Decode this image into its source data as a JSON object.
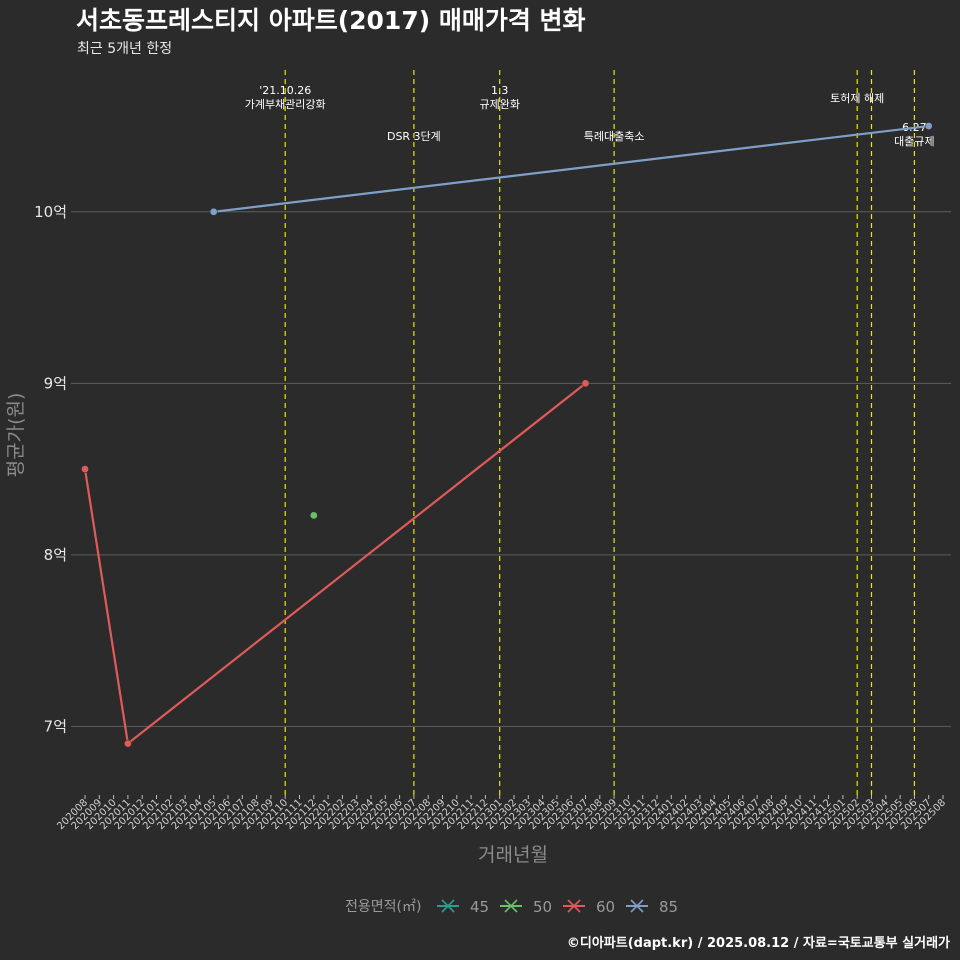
{
  "chart_data": {
    "type": "line",
    "title": "서초동프레스티지 아파트(2017) 매매가격 변화",
    "subtitle": "최근 5개년 한정",
    "xlabel": "거래년월",
    "ylabel": "평균가(원)",
    "caption": "©디아파트(dapt.kr) / 2025.08.12 / 자료=국토교통부 실거래가",
    "x_categories": [
      "202008",
      "202009",
      "202010",
      "202011",
      "202012",
      "202101",
      "202102",
      "202103",
      "202104",
      "202105",
      "202106",
      "202107",
      "202108",
      "202109",
      "202110",
      "202111",
      "202112",
      "202201",
      "202202",
      "202203",
      "202204",
      "202205",
      "202206",
      "202207",
      "202208",
      "202209",
      "202210",
      "202211",
      "202212",
      "202301",
      "202302",
      "202303",
      "202304",
      "202305",
      "202306",
      "202307",
      "202308",
      "202309",
      "202310",
      "202311",
      "202312",
      "202401",
      "202402",
      "202403",
      "202404",
      "202405",
      "202406",
      "202407",
      "202408",
      "202409",
      "202410",
      "202411",
      "202412",
      "202501",
      "202502",
      "202503",
      "202504",
      "202505",
      "202506",
      "202507",
      "202508"
    ],
    "yticks": [
      {
        "value": 70000,
        "label": "7억"
      },
      {
        "value": 80000,
        "label": "8억"
      },
      {
        "value": 90000,
        "label": "9억"
      },
      {
        "value": 100000,
        "label": "10억"
      }
    ],
    "ylim": [
      66000,
      108500
    ],
    "grid": true,
    "legend": {
      "title": "전용면적(㎡)",
      "position": "bottom"
    },
    "series": [
      {
        "name": "45",
        "color": "#2a9d8f",
        "points": []
      },
      {
        "name": "50",
        "color": "#6abf69",
        "points": [
          {
            "x": "202112",
            "y": 82300
          }
        ]
      },
      {
        "name": "60",
        "color": "#e05a5a",
        "points": [
          {
            "x": "202008",
            "y": 85000
          },
          {
            "x": "202011",
            "y": 69000
          },
          {
            "x": "202307",
            "y": 90000
          }
        ]
      },
      {
        "name": "85",
        "color": "#7f9fc8",
        "points": [
          {
            "x": "202105",
            "y": 100000
          },
          {
            "x": "202507",
            "y": 105000
          }
        ]
      }
    ],
    "vlines": [
      {
        "x": "202110",
        "label": "'21.10.26\n가계부채관리강화",
        "row": 0
      },
      {
        "x": "202207",
        "label": "DSR 3단계",
        "row": 2
      },
      {
        "x": "202301",
        "label": "1.3\n규제완화",
        "row": 0
      },
      {
        "x": "202309",
        "label": "특례대출축소",
        "row": 2
      },
      {
        "x": "202502",
        "label": "토허제 해제",
        "row": 1
      },
      {
        "x": "202503",
        "label": "",
        "row": 1
      },
      {
        "x": "202506",
        "label": "6.27\n대출규제",
        "row": 3
      }
    ]
  }
}
